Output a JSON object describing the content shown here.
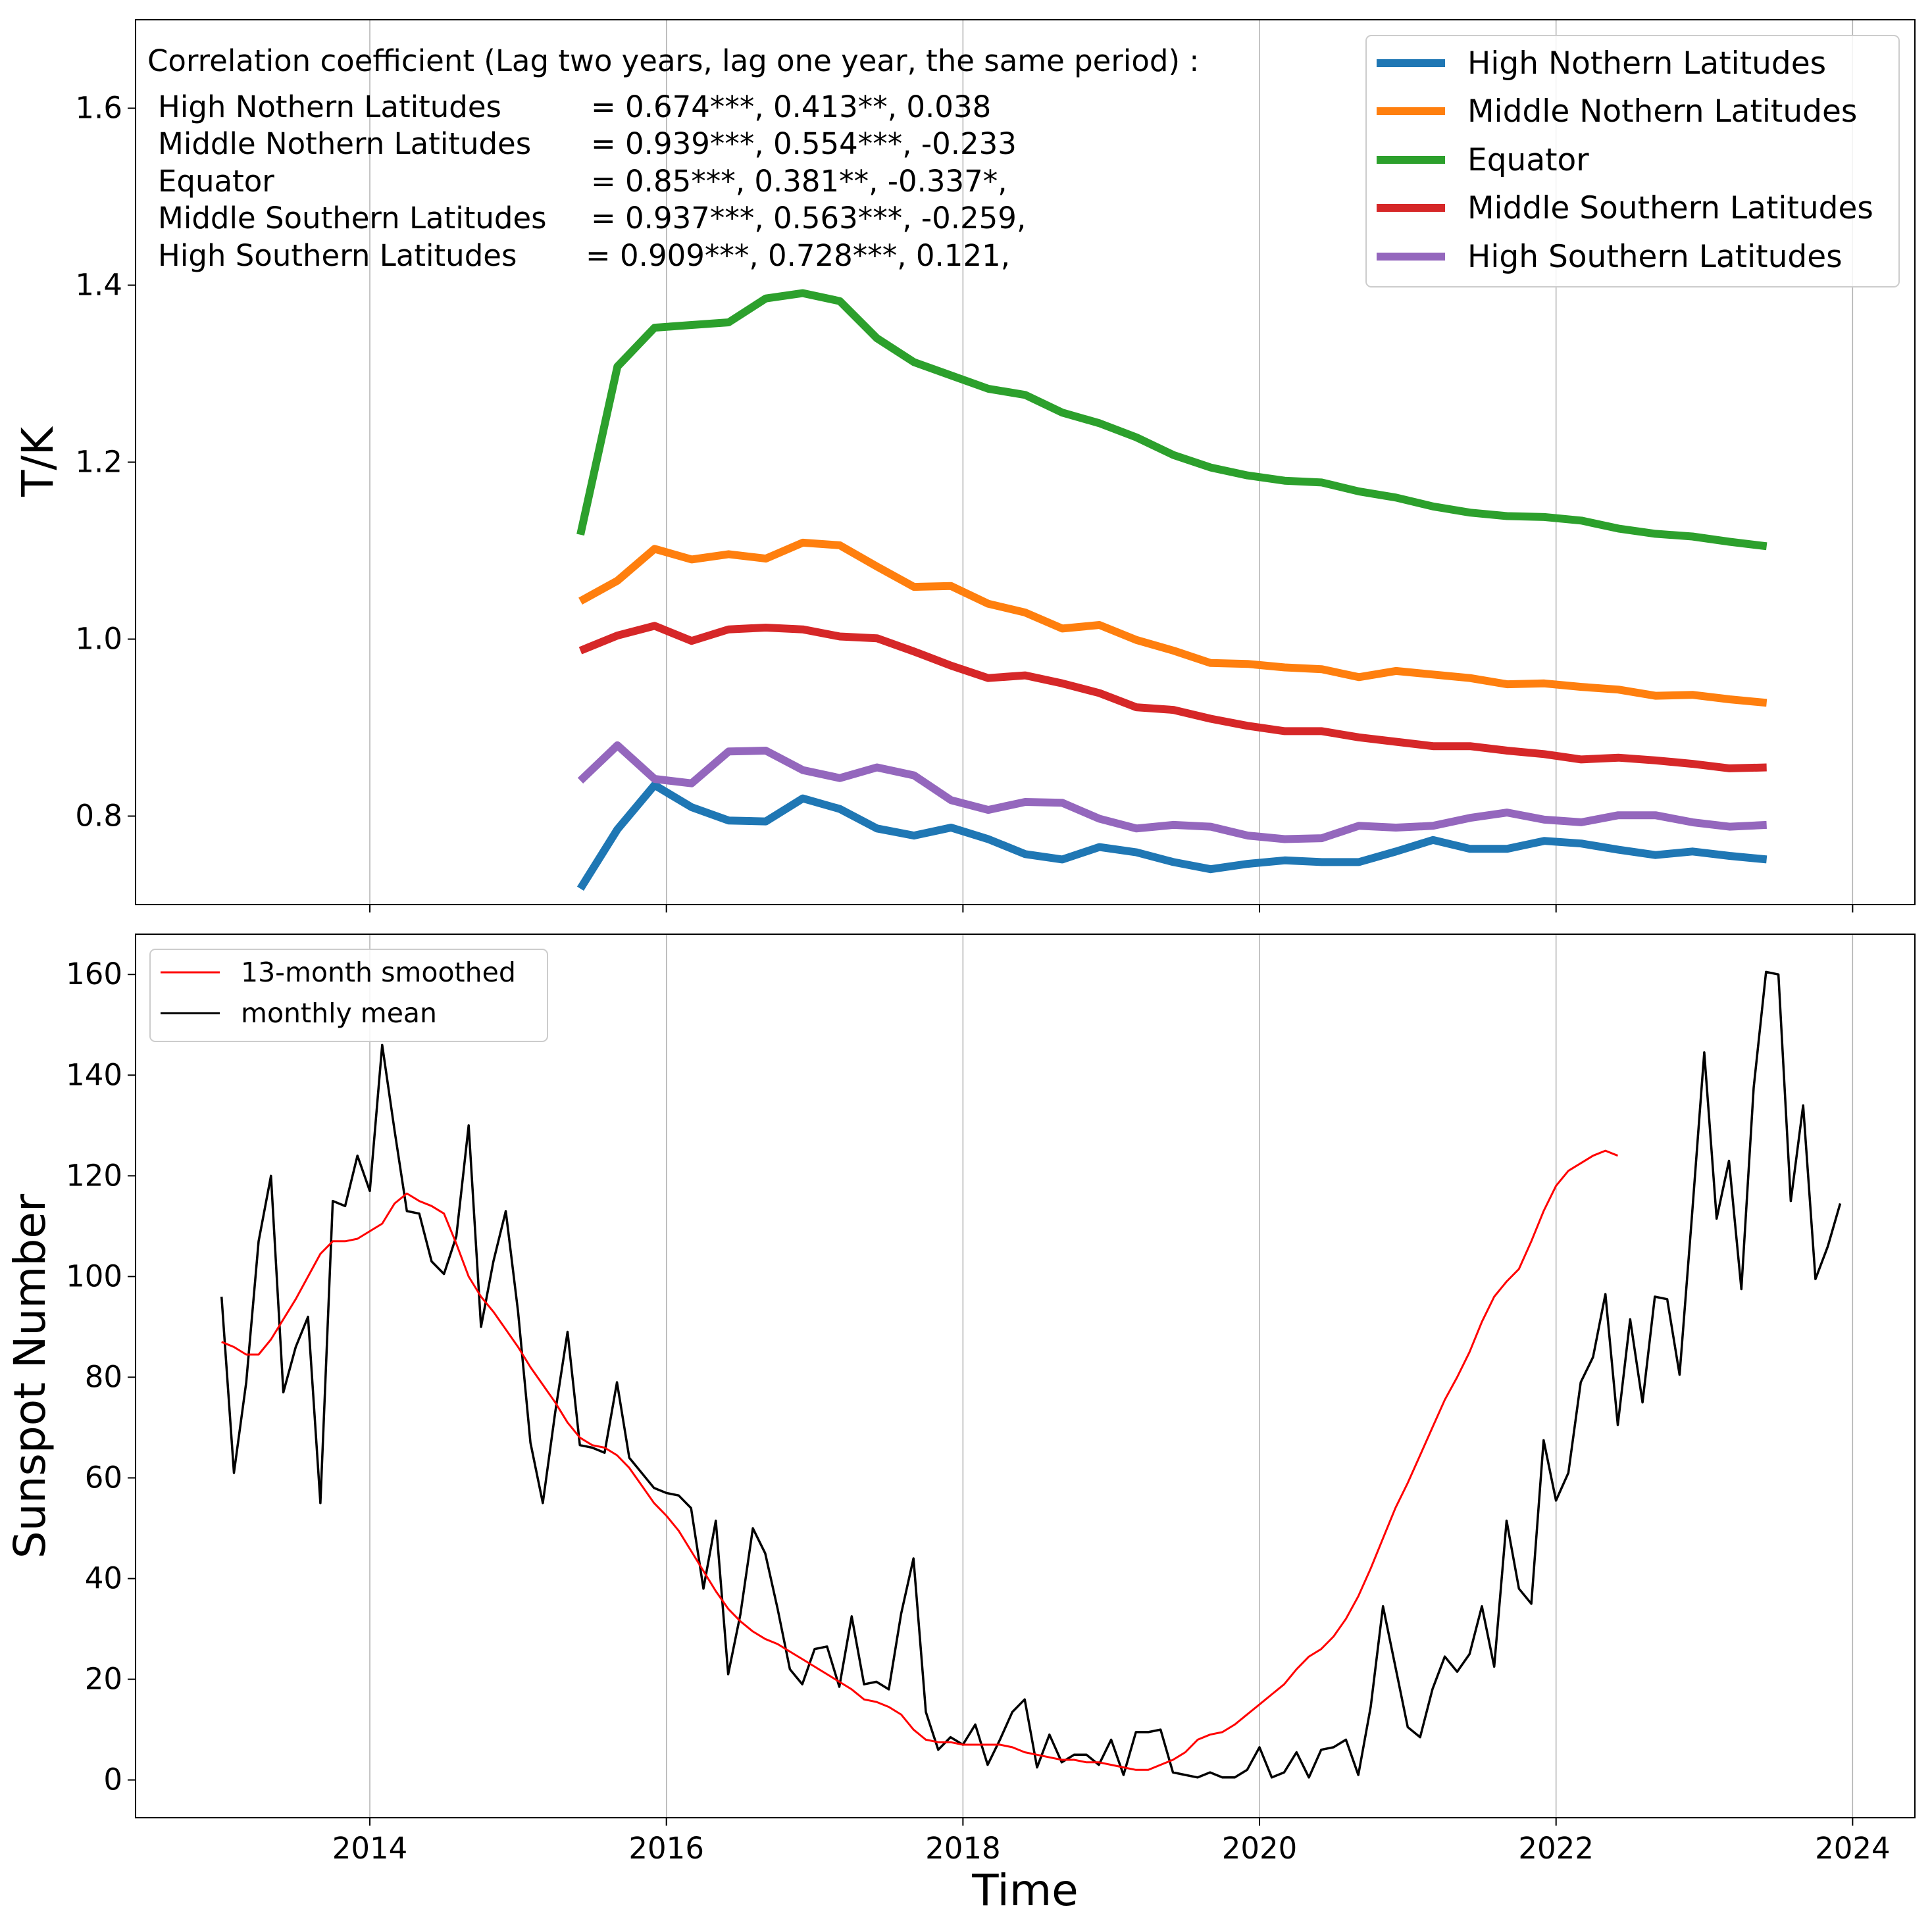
{
  "chart_data": [
    {
      "type": "line",
      "ylabel": "T/K",
      "ylim": [
        0.7,
        1.7
      ],
      "yticks": [
        0.8,
        1.0,
        1.2,
        1.4,
        1.6
      ],
      "ytick_labels": [
        "0.8",
        "1.0",
        "1.2",
        "1.4",
        "1.6"
      ],
      "xlim": [
        2012.42,
        2024.42
      ],
      "xgrid": [
        2014,
        2016,
        2018,
        2020,
        2022,
        2024
      ],
      "grid": "vertical",
      "legend_position": "top-right",
      "annotation": {
        "title": "Correlation coefficient (Lag two years, lag one year, the same period) :",
        "rows": [
          {
            "name": "High Nothern Latitudes",
            "values": "= 0.674***, 0.413**, 0.038"
          },
          {
            "name": "Middle Nothern Latitudes",
            "values": "= 0.939***, 0.554***, -0.233"
          },
          {
            "name": "Equator",
            "values": "= 0.85***, 0.381**, -0.337*,"
          },
          {
            "name": "Middle Southern Latitudes",
            "values": "= 0.937***, 0.563***, -0.259,"
          },
          {
            "name": "High Southern Latitudes",
            "values": "= 0.909***, 0.728***, 0.121,"
          }
        ]
      },
      "x": [
        2015.42,
        2015.67,
        2015.92,
        2016.17,
        2016.42,
        2016.67,
        2016.92,
        2017.17,
        2017.42,
        2017.67,
        2017.92,
        2018.17,
        2018.42,
        2018.67,
        2018.92,
        2019.17,
        2019.42,
        2019.67,
        2019.92,
        2020.17,
        2020.42,
        2020.67,
        2020.92,
        2021.17,
        2021.42,
        2021.67,
        2021.92,
        2022.17,
        2022.42,
        2022.67,
        2022.92,
        2023.17,
        2023.42
      ],
      "series": [
        {
          "name": "High Nothern Latitudes",
          "color": "#1f77b4",
          "values": [
            0.718,
            0.785,
            0.835,
            0.81,
            0.795,
            0.794,
            0.82,
            0.808,
            0.786,
            0.778,
            0.787,
            0.774,
            0.757,
            0.751,
            0.765,
            0.759,
            0.748,
            0.74,
            0.746,
            0.75,
            0.748,
            0.748,
            0.76,
            0.773,
            0.763,
            0.763,
            0.772,
            0.769,
            0.762,
            0.756,
            0.76,
            0.755,
            0.751
          ]
        },
        {
          "name": "Middle Nothern Latitudes",
          "color": "#ff7f0e",
          "values": [
            1.043,
            1.066,
            1.102,
            1.09,
            1.096,
            1.091,
            1.109,
            1.106,
            1.082,
            1.059,
            1.06,
            1.04,
            1.03,
            1.012,
            1.016,
            0.999,
            0.987,
            0.973,
            0.972,
            0.968,
            0.966,
            0.957,
            0.964,
            0.96,
            0.956,
            0.949,
            0.95,
            0.946,
            0.943,
            0.936,
            0.937,
            0.932,
            0.928
          ]
        },
        {
          "name": "Equator",
          "color": "#2ca02c",
          "values": [
            1.118,
            1.308,
            1.352,
            1.355,
            1.358,
            1.385,
            1.391,
            1.382,
            1.34,
            1.313,
            1.298,
            1.283,
            1.276,
            1.256,
            1.244,
            1.228,
            1.208,
            1.194,
            1.185,
            1.179,
            1.177,
            1.167,
            1.16,
            1.15,
            1.143,
            1.139,
            1.138,
            1.134,
            1.125,
            1.119,
            1.116,
            1.11,
            1.105
          ]
        },
        {
          "name": "Middle Southern Latitudes",
          "color": "#d62728",
          "values": [
            0.987,
            1.004,
            1.015,
            0.998,
            1.011,
            1.013,
            1.011,
            1.003,
            1.001,
            0.986,
            0.97,
            0.956,
            0.959,
            0.95,
            0.939,
            0.923,
            0.92,
            0.91,
            0.902,
            0.896,
            0.896,
            0.889,
            0.884,
            0.879,
            0.879,
            0.874,
            0.87,
            0.864,
            0.866,
            0.863,
            0.859,
            0.854,
            0.855
          ]
        },
        {
          "name": "High Southern Latitudes",
          "color": "#9467bd",
          "values": [
            0.84,
            0.88,
            0.842,
            0.837,
            0.873,
            0.874,
            0.852,
            0.843,
            0.855,
            0.846,
            0.818,
            0.807,
            0.816,
            0.815,
            0.797,
            0.786,
            0.79,
            0.788,
            0.778,
            0.774,
            0.775,
            0.789,
            0.787,
            0.789,
            0.798,
            0.804,
            0.796,
            0.793,
            0.801,
            0.801,
            0.793,
            0.788,
            0.79
          ]
        }
      ]
    },
    {
      "type": "line",
      "xlabel": "Time",
      "ylabel": "Sunspot Number",
      "ylim": [
        -7.5,
        168
      ],
      "yticks": [
        0,
        20,
        40,
        60,
        80,
        100,
        120,
        140,
        160
      ],
      "ytick_labels": [
        "0",
        "20",
        "40",
        "60",
        "80",
        "100",
        "120",
        "140",
        "160"
      ],
      "xlim": [
        2012.42,
        2024.42
      ],
      "xticks": [
        2014,
        2016,
        2018,
        2020,
        2022,
        2024
      ],
      "xtick_labels": [
        "2014",
        "2016",
        "2018",
        "2020",
        "2022",
        "2024"
      ],
      "grid": "vertical",
      "legend_position": "top-left",
      "monthly_x_start": 2013.0,
      "monthly_x_step": 0.08333,
      "series": [
        {
          "name": "13-month smoothed",
          "color": "#ff0000",
          "values": [
            87,
            86,
            84.5,
            84.5,
            87.5,
            91.5,
            95.5,
            100,
            104.5,
            107,
            107,
            107.5,
            109,
            110.5,
            114.5,
            116.5,
            115,
            114,
            112.5,
            106.5,
            100,
            96,
            93,
            89.5,
            86,
            82,
            78.5,
            75,
            71,
            68,
            66.5,
            66,
            64.5,
            62,
            58.5,
            55,
            52.5,
            49.5,
            45.5,
            41.5,
            37.5,
            34,
            31.5,
            29.5,
            28,
            27,
            25.5,
            24,
            22.5,
            21,
            19.5,
            18,
            16,
            15.5,
            14.5,
            13,
            10,
            8,
            7.5,
            7.5,
            7,
            7,
            7,
            7,
            6.5,
            5.5,
            5,
            4.5,
            4,
            4,
            3.5,
            3.5,
            3,
            2.5,
            2,
            2,
            3,
            4,
            5.5,
            8,
            9,
            9.5,
            11,
            13,
            15,
            17,
            19,
            22,
            24.5,
            26,
            28.5,
            32,
            36.5,
            42,
            48,
            54,
            59,
            64.5,
            70,
            75.5,
            80,
            85,
            91,
            96,
            99,
            101.5,
            107,
            113,
            118,
            121,
            122.5,
            124,
            125,
            124
          ]
        },
        {
          "name": "monthly mean",
          "color": "#000000",
          "values": [
            96,
            61,
            79,
            107,
            120,
            77,
            86,
            92,
            55,
            115,
            114,
            124,
            117,
            146,
            129,
            113,
            112.5,
            103,
            100.5,
            108,
            130,
            90,
            103,
            113,
            93,
            67,
            55,
            73,
            89,
            66.5,
            66,
            65,
            79,
            64,
            61,
            58,
            57,
            56.5,
            54,
            38,
            51.5,
            21,
            33,
            50,
            45,
            34,
            22,
            19,
            26,
            26.5,
            18.5,
            32.5,
            19,
            19.5,
            18,
            33,
            44,
            13.5,
            6,
            8.5,
            7,
            11,
            3,
            8,
            13.5,
            16,
            2.5,
            9,
            3.5,
            5,
            5,
            3,
            8,
            1,
            9.5,
            9.5,
            10,
            1.5,
            1,
            0.5,
            1.5,
            0.5,
            0.5,
            2,
            6.5,
            0.5,
            1.5,
            5.5,
            0.5,
            6,
            6.5,
            8,
            1,
            14.5,
            34.5,
            22.5,
            10.5,
            8.5,
            18,
            24.5,
            21.5,
            25,
            34.5,
            22.5,
            51.5,
            38,
            35,
            67.5,
            55.5,
            61,
            79,
            84,
            96.5,
            70.5,
            91.5,
            75,
            96,
            95.5,
            80.5,
            112,
            144.5,
            111.5,
            123,
            97.5,
            137.5,
            160.5,
            160,
            115,
            134,
            99.5,
            106,
            114.5
          ]
        }
      ]
    }
  ]
}
